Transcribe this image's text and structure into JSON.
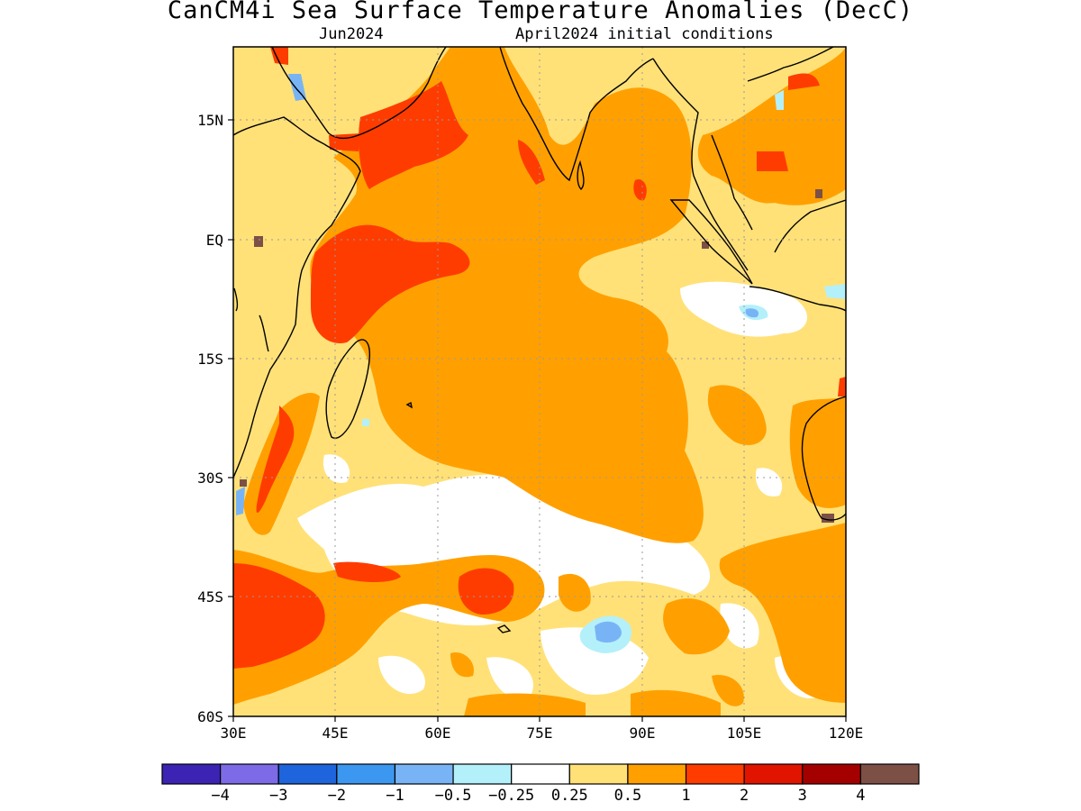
{
  "title": "CanCM4i Sea Surface Temperature Anomalies (DecC)",
  "subtitle_left": "Jun2024",
  "subtitle_right": "April2024 initial conditions",
  "map": {
    "lon_range": [
      30,
      120
    ],
    "lat_range": [
      -60,
      24
    ],
    "grid": true,
    "x_ticks": [
      "30E",
      "45E",
      "60E",
      "75E",
      "90E",
      "105E",
      "120E"
    ],
    "y_ticks": [
      "15N",
      "EQ",
      "15S",
      "30S",
      "45S",
      "60S"
    ]
  },
  "colorbar": {
    "colors": [
      "#3c23b4",
      "#7c6ae6",
      "#1e64dc",
      "#3c97f0",
      "#78b4f5",
      "#b4f0fa",
      "#ffffff",
      "#ffe178",
      "#ffa000",
      "#ff3c00",
      "#e11400",
      "#a50000",
      "#7d5046"
    ],
    "labels": [
      "−4",
      "−3",
      "−2",
      "−1",
      "−0.5",
      "−0.25",
      "0.25",
      "0.5",
      "1",
      "2",
      "3",
      "4"
    ]
  }
}
